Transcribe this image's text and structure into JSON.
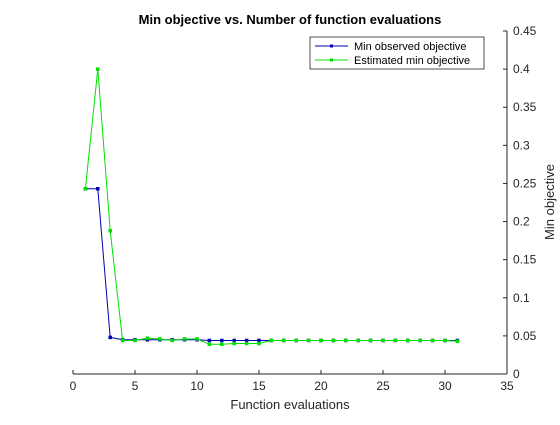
{
  "chart_data": {
    "type": "line",
    "title": "Min objective vs. Number of function evaluations",
    "xlabel": "Function evaluations",
    "ylabel": "Min objective",
    "xlim": [
      0,
      35
    ],
    "ylim": [
      0,
      0.45
    ],
    "xticks": [
      0,
      5,
      10,
      15,
      20,
      25,
      30,
      35
    ],
    "yticks": [
      0,
      0.05,
      0.1,
      0.15,
      0.2,
      0.25,
      0.3,
      0.35,
      0.4,
      0.45
    ],
    "ytick_labels": [
      "0",
      "0.05",
      "0.1",
      "0.15",
      "0.2",
      "0.25",
      "0.3",
      "0.35",
      "0.4",
      "0.45"
    ],
    "y_axis_side": "right",
    "grid": false,
    "legend": {
      "placement": "top-right"
    },
    "series": [
      {
        "name": "Min observed objective",
        "color": "#0000b4",
        "marker": "square",
        "x": [
          1,
          2,
          3,
          4,
          5,
          6,
          7,
          8,
          9,
          10,
          11,
          12,
          13,
          14,
          15,
          16,
          17,
          18,
          19,
          20,
          21,
          22,
          23,
          24,
          25,
          26,
          27,
          28,
          29,
          30,
          31
        ],
        "y": [
          0.243,
          0.243,
          0.048,
          0.045,
          0.045,
          0.045,
          0.045,
          0.045,
          0.045,
          0.045,
          0.044,
          0.044,
          0.044,
          0.044,
          0.044,
          0.044,
          0.044,
          0.044,
          0.044,
          0.044,
          0.044,
          0.044,
          0.044,
          0.044,
          0.044,
          0.044,
          0.044,
          0.044,
          0.044,
          0.044,
          0.044
        ]
      },
      {
        "name": "Estimated min objective",
        "color": "#00e000",
        "marker": "square",
        "x": [
          1,
          2,
          3,
          4,
          5,
          6,
          7,
          8,
          9,
          10,
          11,
          12,
          13,
          14,
          15,
          16,
          17,
          18,
          19,
          20,
          21,
          22,
          23,
          24,
          25,
          26,
          27,
          28,
          29,
          30,
          31
        ],
        "y": [
          0.243,
          0.4,
          0.188,
          0.044,
          0.044,
          0.047,
          0.046,
          0.044,
          0.046,
          0.046,
          0.039,
          0.039,
          0.04,
          0.04,
          0.04,
          0.044,
          0.044,
          0.044,
          0.044,
          0.044,
          0.044,
          0.044,
          0.044,
          0.044,
          0.044,
          0.044,
          0.044,
          0.044,
          0.044,
          0.044,
          0.043
        ]
      }
    ]
  }
}
